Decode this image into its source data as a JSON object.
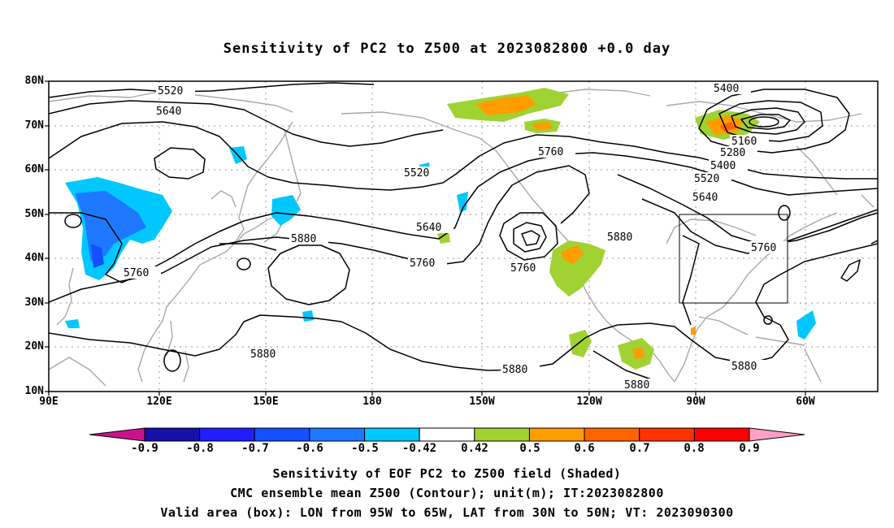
{
  "title": "Sensitivity of PC2 to Z500 at 2023082800 +0.0 day",
  "map": {
    "projection": "cylindrical equidistant",
    "lon_range": [
      "90E",
      "40W"
    ],
    "lat_range": [
      "10N",
      "80N"
    ],
    "lat_labels": [
      "80N",
      "70N",
      "60N",
      "50N",
      "40N",
      "30N",
      "20N",
      "10N"
    ],
    "lon_labels": [
      "90E",
      "120E",
      "150E",
      "180",
      "150W",
      "120W",
      "90W",
      "60W"
    ],
    "grid": "dotted",
    "coastline_color": "#a8a8a8",
    "contour_color": "#000000",
    "contour_labels": [
      "5520",
      "5640",
      "5400",
      "5160",
      "5280",
      "5400",
      "5520",
      "5640",
      "5760",
      "5520",
      "5640",
      "5760",
      "5760",
      "5880",
      "5760",
      "5880",
      "5760",
      "5880",
      "5880",
      "5880"
    ],
    "valid_box": {
      "lon": [
        "95W",
        "65W"
      ],
      "lat": [
        "30N",
        "50N"
      ]
    }
  },
  "colorbar": {
    "labels": [
      "-0.9",
      "-0.8",
      "-0.7",
      "-0.6",
      "-0.5",
      "-0.42",
      "0.42",
      "0.5",
      "0.6",
      "0.7",
      "0.8",
      "0.9"
    ],
    "colors": [
      "#1410a8",
      "#1e1eff",
      "#1450ff",
      "#1e78ff",
      "#00c8ff",
      "#ffffff",
      "#a0d232",
      "#ff9c00",
      "#ff6400",
      "#ff3200",
      "#ff0000"
    ],
    "left_arrow_color": "#c8148c",
    "right_arrow_color": "#ffa0c8"
  },
  "captions": [
    "Sensitivity of EOF PC2 to Z500 field (Shaded)",
    "CMC ensemble mean Z500 (Contour); unit(m); IT:2023082800",
    "Valid area (box): LON from 95W to 65W, LAT from 30N to 50N; VT: 2023090300"
  ]
}
